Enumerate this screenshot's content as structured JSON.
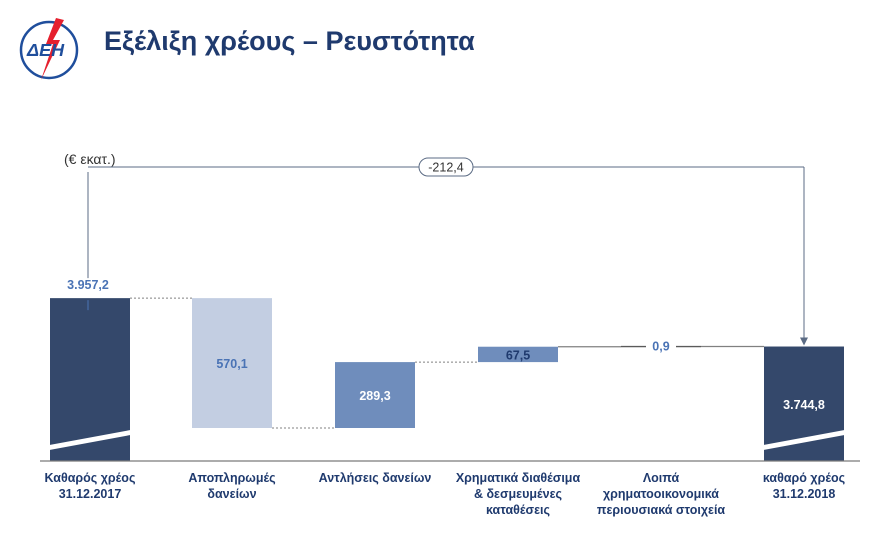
{
  "header": {
    "title": "Εξέλιξη χρέους – Ρευστότητα",
    "logo_text": "ΔΕΗ",
    "logo_colors": {
      "ring": "#1f4e9c",
      "bolt": "#e5202e"
    }
  },
  "chart_data": {
    "type": "bar",
    "subtype": "waterfall",
    "unit_label": "(€ εκατ.)",
    "categories": [
      [
        "Καθαρός χρέος",
        "31.12.2017"
      ],
      [
        "Αποπληρωμές",
        "δανείων"
      ],
      [
        "Αντλήσεις δανείων"
      ],
      [
        "Χρηματικά διαθέσιμα",
        "& δεσμευμένες",
        "καταθέσεις"
      ],
      [
        "Λοιπά",
        "χρηματοοικονομικά",
        "περιουσιακά στοιχεία"
      ],
      [
        "καθαρό χρέος",
        "31.12.2018"
      ]
    ],
    "values": [
      3957.2,
      -570.1,
      289.3,
      67.5,
      0.9,
      3744.8
    ],
    "labels": [
      "3.957,2",
      "570,1",
      "289,3",
      "67,5",
      "0,9",
      "3.744,8"
    ],
    "bar_kinds": [
      "total",
      "decrease",
      "increase",
      "increase",
      "increase",
      "total"
    ],
    "change_label": "-212,4",
    "axis_break": true,
    "colors": {
      "total": "#34486b",
      "decrease": "#c3cee2",
      "increase": "#6f8dbc",
      "label_dark": "#1f3a6e",
      "label_accent": "#4a73b5",
      "connector": "#808080",
      "arrow": "#5b6b84"
    }
  }
}
